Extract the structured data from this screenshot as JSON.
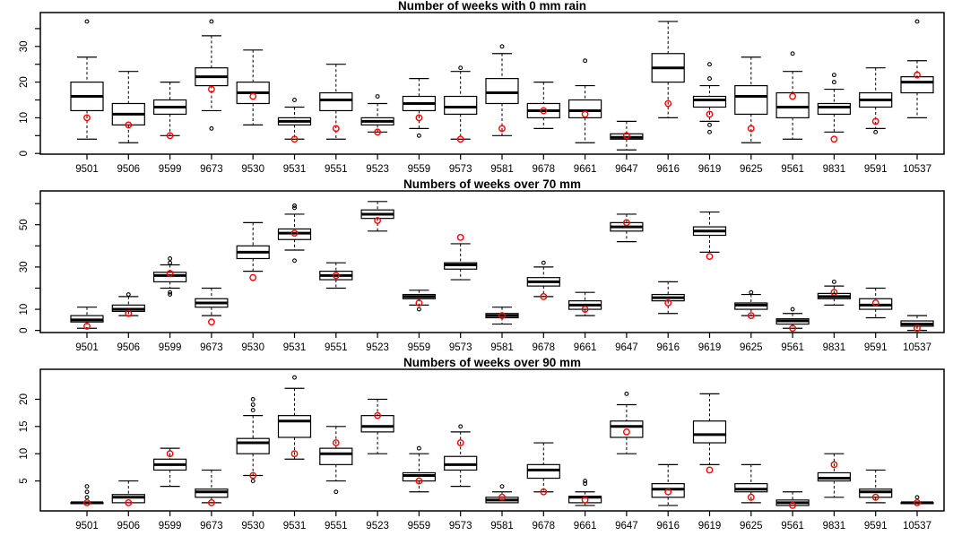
{
  "figure": {
    "background": "#ffffff",
    "colors": {
      "line": "#000000",
      "box_fill": "#ffffff",
      "observed_point": "#ff0000"
    }
  },
  "chart_data": [
    {
      "type": "boxplot",
      "title": "Number of weeks with 0 mm rain",
      "ylim": [
        -0.2,
        39.5
      ],
      "yticks": [
        0,
        5,
        10,
        15,
        20,
        25,
        30,
        35
      ],
      "yticks_labeled": [
        0,
        10,
        20,
        30
      ],
      "grid": false,
      "boxes": [
        {
          "station": "9501",
          "whisker_low": 4,
          "q1": 12,
          "median": 16,
          "q3": 20,
          "whisker_high": 27,
          "outliers": [
            37
          ],
          "observed": 10
        },
        {
          "station": "9506",
          "whisker_low": 3,
          "q1": 8,
          "median": 11,
          "q3": 14,
          "whisker_high": 23,
          "outliers": [],
          "observed": 8
        },
        {
          "station": "9599",
          "whisker_low": 5,
          "q1": 11,
          "median": 13,
          "q3": 15,
          "whisker_high": 20,
          "outliers": [],
          "observed": 5
        },
        {
          "station": "9673",
          "whisker_low": 12,
          "q1": 19,
          "median": 21.5,
          "q3": 24,
          "whisker_high": 33,
          "outliers": [
            37,
            7
          ],
          "observed": 18
        },
        {
          "station": "9530",
          "whisker_low": 8,
          "q1": 14,
          "median": 17,
          "q3": 20,
          "whisker_high": 29,
          "outliers": [],
          "observed": 16
        },
        {
          "station": "9531",
          "whisker_low": 4,
          "q1": 8,
          "median": 9,
          "q3": 10,
          "whisker_high": 13,
          "outliers": [
            15
          ],
          "observed": 4
        },
        {
          "station": "9551",
          "whisker_low": 4,
          "q1": 12,
          "median": 15,
          "q3": 17,
          "whisker_high": 25,
          "outliers": [],
          "observed": 7
        },
        {
          "station": "9523",
          "whisker_low": 6,
          "q1": 8,
          "median": 9,
          "q3": 10,
          "whisker_high": 14,
          "outliers": [
            16
          ],
          "observed": 6
        },
        {
          "station": "9559",
          "whisker_low": 7,
          "q1": 12,
          "median": 14,
          "q3": 16,
          "whisker_high": 21,
          "outliers": [
            5
          ],
          "observed": 10
        },
        {
          "station": "9573",
          "whisker_low": 4,
          "q1": 11,
          "median": 13,
          "q3": 16,
          "whisker_high": 23,
          "outliers": [
            24
          ],
          "observed": 4
        },
        {
          "station": "9581",
          "whisker_low": 5,
          "q1": 14,
          "median": 17,
          "q3": 21,
          "whisker_high": 28,
          "outliers": [
            30
          ],
          "observed": 7
        },
        {
          "station": "9678",
          "whisker_low": 7,
          "q1": 10,
          "median": 12,
          "q3": 14,
          "whisker_high": 20,
          "outliers": [],
          "observed": 12
        },
        {
          "station": "9661",
          "whisker_low": 3,
          "q1": 10,
          "median": 12,
          "q3": 15,
          "whisker_high": 19,
          "outliers": [
            26
          ],
          "observed": 11
        },
        {
          "station": "9647",
          "whisker_low": 1,
          "q1": 4,
          "median": 4.5,
          "q3": 5.5,
          "whisker_high": 9,
          "outliers": [],
          "observed": 5
        },
        {
          "station": "9616",
          "whisker_low": 10,
          "q1": 20,
          "median": 24,
          "q3": 28,
          "whisker_high": 37,
          "outliers": [],
          "observed": 14
        },
        {
          "station": "9619",
          "whisker_low": 9,
          "q1": 13,
          "median": 15,
          "q3": 16,
          "whisker_high": 19,
          "outliers": [
            25,
            21,
            8,
            6
          ],
          "observed": 11
        },
        {
          "station": "9625",
          "whisker_low": 3,
          "q1": 11,
          "median": 16,
          "q3": 19,
          "whisker_high": 27,
          "outliers": [],
          "observed": 7
        },
        {
          "station": "9561",
          "whisker_low": 4,
          "q1": 10,
          "median": 13,
          "q3": 17,
          "whisker_high": 23,
          "outliers": [
            28
          ],
          "observed": 16
        },
        {
          "station": "9831",
          "whisker_low": 6,
          "q1": 11,
          "median": 13,
          "q3": 14,
          "whisker_high": 18,
          "outliers": [
            22,
            20
          ],
          "observed": 4
        },
        {
          "station": "9591",
          "whisker_low": 7,
          "q1": 13,
          "median": 15,
          "q3": 17,
          "whisker_high": 24,
          "outliers": [
            6
          ],
          "observed": 9
        },
        {
          "station": "10537",
          "whisker_low": 10,
          "q1": 17,
          "median": 20,
          "q3": 21.5,
          "whisker_high": 26,
          "outliers": [
            37
          ],
          "observed": 22
        }
      ]
    },
    {
      "type": "boxplot",
      "title": "Numbers of weeks over 70 mm",
      "ylim": [
        -1,
        66
      ],
      "yticks": [
        0,
        10,
        20,
        30,
        40,
        50,
        60
      ],
      "yticks_labeled": [
        0,
        10,
        30,
        50
      ],
      "grid": false,
      "boxes": [
        {
          "station": "9501",
          "whisker_low": 1,
          "q1": 4,
          "median": 5,
          "q3": 7,
          "whisker_high": 11,
          "outliers": [],
          "observed": 2
        },
        {
          "station": "9506",
          "whisker_low": 7,
          "q1": 9,
          "median": 10,
          "q3": 12,
          "whisker_high": 16,
          "outliers": [
            17
          ],
          "observed": 8
        },
        {
          "station": "9599",
          "whisker_low": 20,
          "q1": 23,
          "median": 26,
          "q3": 27.5,
          "whisker_high": 31,
          "outliers": [
            34,
            32,
            18,
            17
          ],
          "observed": 27
        },
        {
          "station": "9673",
          "whisker_low": 7,
          "q1": 11,
          "median": 13,
          "q3": 15,
          "whisker_high": 20,
          "outliers": [],
          "observed": 4
        },
        {
          "station": "9530",
          "whisker_low": 28,
          "q1": 34,
          "median": 37,
          "q3": 40,
          "whisker_high": 51,
          "outliers": [],
          "observed": 25
        },
        {
          "station": "9531",
          "whisker_low": 38,
          "q1": 43,
          "median": 46,
          "q3": 48,
          "whisker_high": 55,
          "outliers": [
            59,
            58,
            33
          ],
          "observed": 46
        },
        {
          "station": "9551",
          "whisker_low": 20,
          "q1": 24,
          "median": 26,
          "q3": 28,
          "whisker_high": 32,
          "outliers": [],
          "observed": 26
        },
        {
          "station": "9523",
          "whisker_low": 47,
          "q1": 53,
          "median": 55,
          "q3": 57,
          "whisker_high": 61,
          "outliers": [],
          "observed": 52
        },
        {
          "station": "9559",
          "whisker_low": 12,
          "q1": 15,
          "median": 16,
          "q3": 17,
          "whisker_high": 19,
          "outliers": [
            10
          ],
          "observed": 13
        },
        {
          "station": "9573",
          "whisker_low": 24,
          "q1": 29,
          "median": 31,
          "q3": 32,
          "whisker_high": 41,
          "outliers": [],
          "observed": 44
        },
        {
          "station": "9581",
          "whisker_low": 3,
          "q1": 6,
          "median": 7,
          "q3": 8,
          "whisker_high": 11,
          "outliers": [],
          "observed": 7
        },
        {
          "station": "9678",
          "whisker_low": 16,
          "q1": 21,
          "median": 23,
          "q3": 25,
          "whisker_high": 30,
          "outliers": [
            32
          ],
          "observed": 16
        },
        {
          "station": "9661",
          "whisker_low": 7,
          "q1": 10,
          "median": 12,
          "q3": 14,
          "whisker_high": 18,
          "outliers": [],
          "observed": 10
        },
        {
          "station": "9647",
          "whisker_low": 42,
          "q1": 47,
          "median": 49,
          "q3": 51,
          "whisker_high": 55,
          "outliers": [],
          "observed": 51
        },
        {
          "station": "9616",
          "whisker_low": 8,
          "q1": 14,
          "median": 15.5,
          "q3": 17,
          "whisker_high": 23,
          "outliers": [],
          "observed": 13
        },
        {
          "station": "9619",
          "whisker_low": 37,
          "q1": 45,
          "median": 47,
          "q3": 49,
          "whisker_high": 56,
          "outliers": [],
          "observed": 35
        },
        {
          "station": "9625",
          "whisker_low": 7,
          "q1": 10,
          "median": 12,
          "q3": 13,
          "whisker_high": 17,
          "outliers": [
            18
          ],
          "observed": 7
        },
        {
          "station": "9561",
          "whisker_low": 1,
          "q1": 3,
          "median": 4.5,
          "q3": 5.5,
          "whisker_high": 8,
          "outliers": [
            10
          ],
          "observed": 1
        },
        {
          "station": "9831",
          "whisker_low": 12,
          "q1": 15,
          "median": 16,
          "q3": 17.5,
          "whisker_high": 21,
          "outliers": [
            23
          ],
          "observed": 18
        },
        {
          "station": "9591",
          "whisker_low": 6,
          "q1": 10,
          "median": 12,
          "q3": 15,
          "whisker_high": 20,
          "outliers": [],
          "observed": 13
        },
        {
          "station": "10537",
          "whisker_low": 0,
          "q1": 2,
          "median": 3,
          "q3": 4.5,
          "whisker_high": 7,
          "outliers": [],
          "observed": 1
        }
      ]
    },
    {
      "type": "boxplot",
      "title": "Numbers of weeks over 90 mm",
      "ylim": [
        -0.5,
        25.5
      ],
      "yticks": [
        5,
        10,
        15,
        20
      ],
      "yticks_labeled": [
        5,
        10,
        15,
        20
      ],
      "grid": false,
      "boxes": [
        {
          "station": "9501",
          "whisker_low": 1,
          "q1": 1,
          "median": 1,
          "q3": 1,
          "whisker_high": 1,
          "outliers": [
            2,
            3,
            4
          ],
          "observed": 1
        },
        {
          "station": "9506",
          "whisker_low": 1,
          "q1": 1,
          "median": 2,
          "q3": 2.5,
          "whisker_high": 5,
          "outliers": [],
          "observed": 1
        },
        {
          "station": "9599",
          "whisker_low": 4,
          "q1": 7,
          "median": 8,
          "q3": 9,
          "whisker_high": 11,
          "outliers": [],
          "observed": 10
        },
        {
          "station": "9673",
          "whisker_low": 1,
          "q1": 2,
          "median": 3,
          "q3": 3.5,
          "whisker_high": 7,
          "outliers": [],
          "observed": 1
        },
        {
          "station": "9530",
          "whisker_low": 6,
          "q1": 10,
          "median": 12,
          "q3": 12.8,
          "whisker_high": 17,
          "outliers": [
            20,
            19,
            18,
            5
          ],
          "observed": 6
        },
        {
          "station": "9531",
          "whisker_low": 9,
          "q1": 13,
          "median": 16,
          "q3": 17,
          "whisker_high": 22,
          "outliers": [
            24
          ],
          "observed": 10
        },
        {
          "station": "9551",
          "whisker_low": 5,
          "q1": 8,
          "median": 10,
          "q3": 11,
          "whisker_high": 15,
          "outliers": [
            3
          ],
          "observed": 12
        },
        {
          "station": "9523",
          "whisker_low": 10,
          "q1": 14,
          "median": 15,
          "q3": 17,
          "whisker_high": 20,
          "outliers": [],
          "observed": 17
        },
        {
          "station": "9559",
          "whisker_low": 3,
          "q1": 5,
          "median": 6,
          "q3": 6.5,
          "whisker_high": 10,
          "outliers": [
            11
          ],
          "observed": 5
        },
        {
          "station": "9573",
          "whisker_low": 4,
          "q1": 7,
          "median": 8,
          "q3": 9.5,
          "whisker_high": 14,
          "outliers": [
            15
          ],
          "observed": 12
        },
        {
          "station": "9581",
          "whisker_low": 1,
          "q1": 1,
          "median": 1.5,
          "q3": 2,
          "whisker_high": 3,
          "outliers": [
            4
          ],
          "observed": 2
        },
        {
          "station": "9678",
          "whisker_low": 3,
          "q1": 5.5,
          "median": 7,
          "q3": 8,
          "whisker_high": 12,
          "outliers": [],
          "observed": 3
        },
        {
          "station": "9661",
          "whisker_low": 0.5,
          "q1": 1,
          "median": 2,
          "q3": 2.2,
          "whisker_high": 3,
          "outliers": [
            5,
            4.5
          ],
          "observed": 1.5
        },
        {
          "station": "9647",
          "whisker_low": 10,
          "q1": 13,
          "median": 15,
          "q3": 16,
          "whisker_high": 19,
          "outliers": [
            21
          ],
          "observed": 14
        },
        {
          "station": "9616",
          "whisker_low": 0.5,
          "q1": 2,
          "median": 3.5,
          "q3": 4.5,
          "whisker_high": 8,
          "outliers": [],
          "observed": 3
        },
        {
          "station": "9619",
          "whisker_low": 8,
          "q1": 12,
          "median": 13.5,
          "q3": 16,
          "whisker_high": 21,
          "outliers": [],
          "observed": 7
        },
        {
          "station": "9625",
          "whisker_low": 1,
          "q1": 3,
          "median": 3.5,
          "q3": 4.5,
          "whisker_high": 8,
          "outliers": [],
          "observed": 2
        },
        {
          "station": "9561",
          "whisker_low": 0.5,
          "q1": 0.5,
          "median": 1,
          "q3": 1.5,
          "whisker_high": 3,
          "outliers": [],
          "observed": 0.5
        },
        {
          "station": "9831",
          "whisker_low": 2,
          "q1": 5,
          "median": 5.5,
          "q3": 6.5,
          "whisker_high": 10,
          "outliers": [],
          "observed": 8
        },
        {
          "station": "9591",
          "whisker_low": 1,
          "q1": 2,
          "median": 3,
          "q3": 3.5,
          "whisker_high": 7,
          "outliers": [],
          "observed": 2
        },
        {
          "station": "10537",
          "whisker_low": 1,
          "q1": 1,
          "median": 1,
          "q3": 1,
          "whisker_high": 1,
          "outliers": [
            2
          ],
          "observed": 1
        }
      ]
    }
  ]
}
